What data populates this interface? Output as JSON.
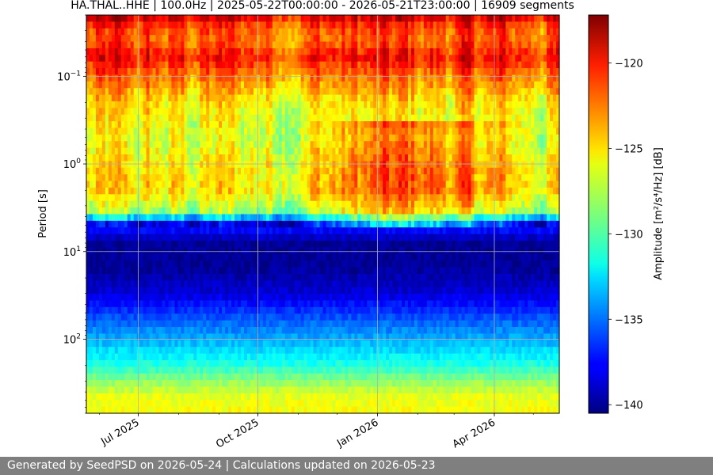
{
  "footer": {
    "text": "Generated by SeedPSD on 2026-05-24 | Calculations updated on 2026-05-23"
  },
  "chart_data": {
    "type": "heatmap",
    "title": "HA.THAL..HHE | 100.0Hz | 2025-05-22T00:00:00 - 2026-05-21T23:00:00 | 16909 segments",
    "ylabel": "Period [s]",
    "colorbar_label": "Amplitude [m²/s⁴/Hz] [dB]",
    "y_scale": "log",
    "y_inverted": true,
    "ylim": [
      0.02,
      700
    ],
    "xlim": [
      "2025-05-22",
      "2026-05-21"
    ],
    "x_ticks": [
      {
        "date": "2025-07-01",
        "label": "Jul 2025"
      },
      {
        "date": "2025-10-01",
        "label": "Oct 2025"
      },
      {
        "date": "2026-01-01",
        "label": "Jan 2026"
      },
      {
        "date": "2026-04-01",
        "label": "Apr 2026"
      }
    ],
    "y_ticks": [
      {
        "value": 0.1,
        "base": "10",
        "exp": "−1"
      },
      {
        "value": 1,
        "base": "10",
        "exp": "0"
      },
      {
        "value": 10,
        "base": "10",
        "exp": "1"
      },
      {
        "value": 100,
        "base": "10",
        "exp": "2"
      }
    ],
    "grid": true,
    "colormap": "jet",
    "color_range": [
      -140.5,
      -117.2
    ],
    "colorbar_ticks": [
      {
        "value": -120,
        "label": "−120"
      },
      {
        "value": -125,
        "label": "−125"
      },
      {
        "value": -130,
        "label": "−130"
      },
      {
        "value": -135,
        "label": "−135"
      },
      {
        "value": -140,
        "label": "−140"
      }
    ],
    "profile": [
      {
        "period": 0.02,
        "amplitude": -119.0
      },
      {
        "period": 0.028,
        "amplitude": -122.0
      },
      {
        "period": 0.04,
        "amplitude": -122.5
      },
      {
        "period": 0.06,
        "amplitude": -120.5
      },
      {
        "period": 0.1,
        "amplitude": -123.0
      },
      {
        "period": 0.2,
        "amplitude": -125.5
      },
      {
        "period": 0.5,
        "amplitude": -127.0
      },
      {
        "period": 1,
        "amplitude": -126.0
      },
      {
        "period": 2,
        "amplitude": -125.5
      },
      {
        "period": 3.5,
        "amplitude": -128.5
      },
      {
        "period": 5,
        "amplitude": -136.5
      },
      {
        "period": 8,
        "amplitude": -140.0
      },
      {
        "period": 15,
        "amplitude": -140.0
      },
      {
        "period": 30,
        "amplitude": -138.5
      },
      {
        "period": 60,
        "amplitude": -135.5
      },
      {
        "period": 120,
        "amplitude": -133.0
      },
      {
        "period": 200,
        "amplitude": -131.0
      },
      {
        "period": 300,
        "amplitude": -128.5
      },
      {
        "period": 450,
        "amplitude": -126.5
      },
      {
        "period": 700,
        "amplitude": -126.0
      }
    ]
  }
}
